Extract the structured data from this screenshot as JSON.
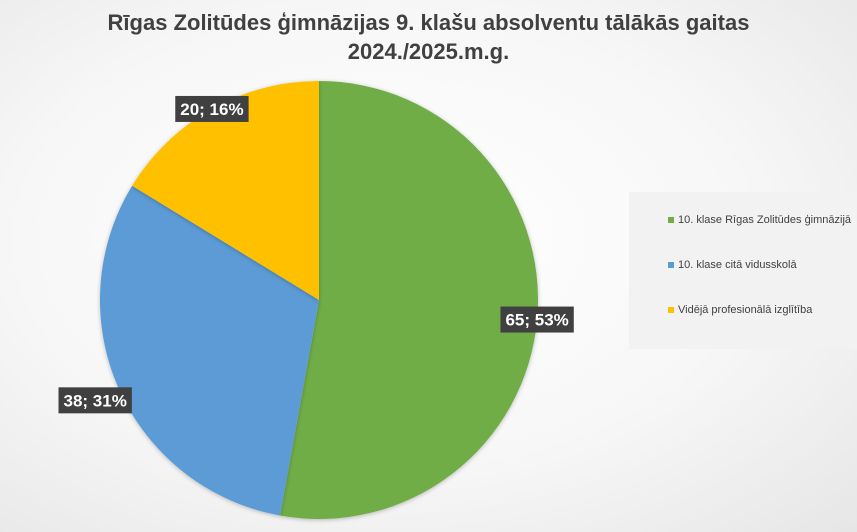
{
  "chart_data": {
    "type": "pie",
    "title": [
      "Rīgas Zolitūdes ģimnāzijas 9. klašu absolventu tālākās gaitas",
      "2024./2025.m.g."
    ],
    "legend_position": "right",
    "slices": [
      {
        "name": "10. klase Rīgas Zolitūdes ģimnāzijā",
        "value": 65,
        "percent": 53,
        "label": "65; 53%",
        "color": "#70ad47"
      },
      {
        "name": "10. klase citā vidusskolā",
        "value": 38,
        "percent": 31,
        "label": "38; 31%",
        "color": "#5b9bd5"
      },
      {
        "name": "Vidējā profesionālā izglītība",
        "value": 20,
        "percent": 16,
        "label": "20; 16%",
        "color": "#ffc000"
      }
    ]
  }
}
